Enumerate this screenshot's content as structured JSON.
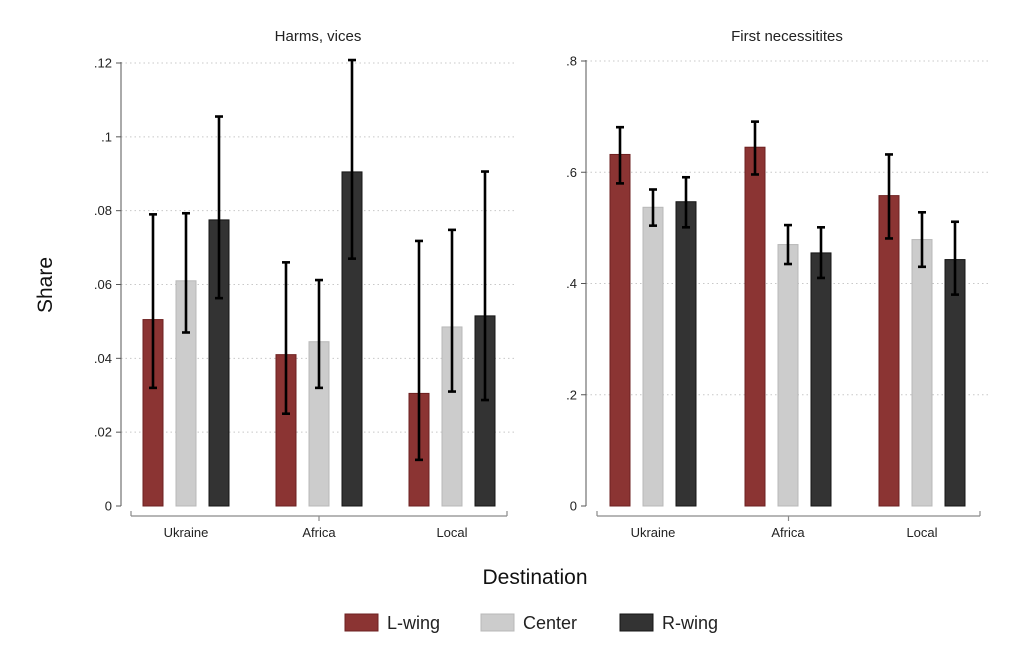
{
  "chart_data": {
    "type": "bar",
    "ylabel": "Share",
    "xlabel": "Destination",
    "categories": [
      "Ukraine",
      "Africa",
      "Local"
    ],
    "legend": [
      {
        "name": "L-wing",
        "color": "#8b3433"
      },
      {
        "name": "Center",
        "color": "#cccccc"
      },
      {
        "name": "R-wing",
        "color": "#333333"
      }
    ],
    "panels": [
      {
        "title": "Harms, vices",
        "ylim": [
          0,
          0.12
        ],
        "yticks": [
          0,
          0.02,
          0.04,
          0.06,
          0.08,
          0.1,
          0.12
        ],
        "ytick_labels": [
          "0",
          ".02",
          ".04",
          ".06",
          ".08",
          ".1",
          ".12"
        ],
        "series": [
          {
            "name": "L-wing",
            "values": [
              0.0505,
              0.041,
              0.0305
            ],
            "ci_low": [
              0.032,
              0.025,
              0.0125
            ],
            "ci_high": [
              0.079,
              0.066,
              0.0718
            ]
          },
          {
            "name": "Center",
            "values": [
              0.061,
              0.0445,
              0.0485
            ],
            "ci_low": [
              0.047,
              0.032,
              0.031
            ],
            "ci_high": [
              0.0793,
              0.0612,
              0.0748
            ]
          },
          {
            "name": "R-wing",
            "values": [
              0.0775,
              0.0905,
              0.0515
            ],
            "ci_low": [
              0.0563,
              0.067,
              0.0287
            ],
            "ci_high": [
              0.1055,
              0.1208,
              0.0906
            ]
          }
        ]
      },
      {
        "title": "First necessitites",
        "ylim": [
          0,
          0.8
        ],
        "yticks": [
          0,
          0.2,
          0.4,
          0.6,
          0.8
        ],
        "ytick_labels": [
          "0",
          ".2",
          ".4",
          ".6",
          ".8"
        ],
        "series": [
          {
            "name": "L-wing",
            "values": [
              0.632,
              0.645,
              0.558
            ],
            "ci_low": [
              0.58,
              0.596,
              0.481
            ],
            "ci_high": [
              0.681,
              0.691,
              0.632
            ]
          },
          {
            "name": "Center",
            "values": [
              0.537,
              0.47,
              0.479
            ],
            "ci_low": [
              0.504,
              0.435,
              0.43
            ],
            "ci_high": [
              0.569,
              0.505,
              0.528
            ]
          },
          {
            "name": "R-wing",
            "values": [
              0.547,
              0.455,
              0.443
            ],
            "ci_low": [
              0.501,
              0.41,
              0.38
            ],
            "ci_high": [
              0.591,
              0.501,
              0.511
            ]
          }
        ]
      }
    ]
  }
}
